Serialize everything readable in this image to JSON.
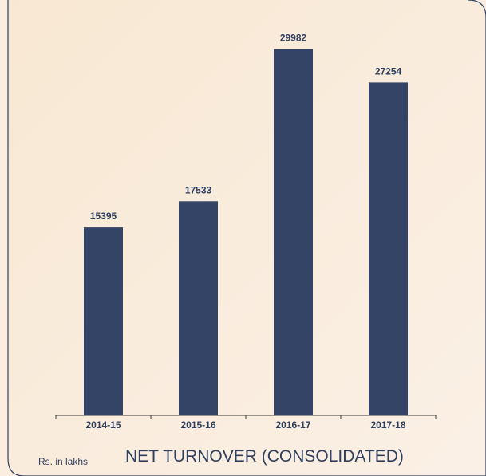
{
  "chart_data": {
    "type": "bar",
    "title": "NET TURNOVER (CONSOLIDATED)",
    "unit_label": "Rs. in lakhs",
    "categories": [
      "2014-15",
      "2015-16",
      "2016-17",
      "2017-18"
    ],
    "values": [
      15395,
      17533,
      29982,
      27254
    ],
    "ylim": [
      0,
      34000
    ],
    "grid": false,
    "legend": "none",
    "bar_color": "#334466",
    "background_color": "#fbeee0",
    "border_color": "#2f3f5f"
  }
}
